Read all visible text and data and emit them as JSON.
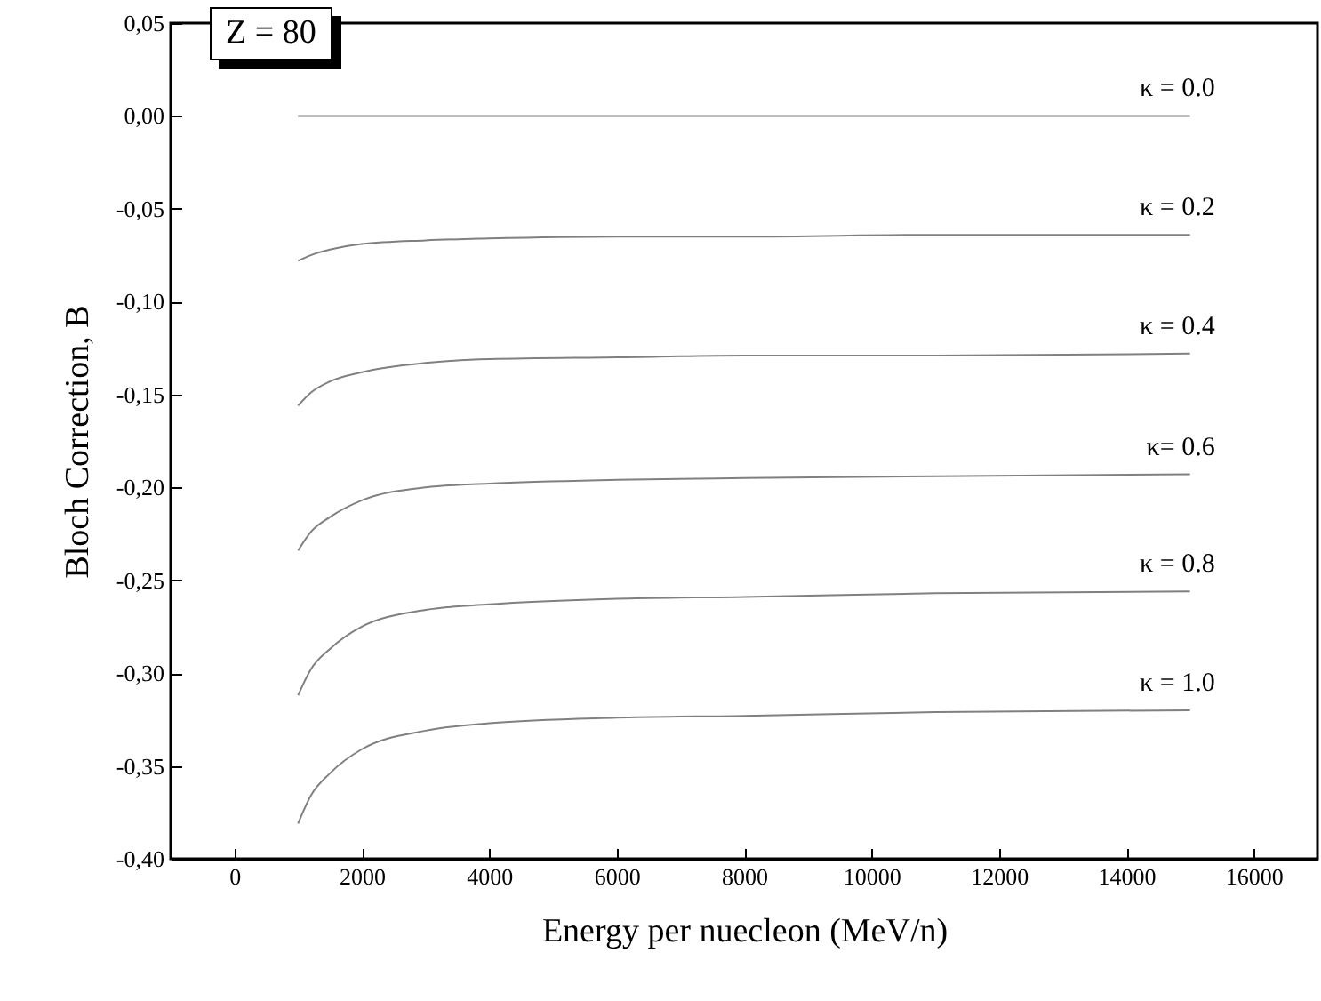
{
  "chart_data": {
    "type": "line",
    "xlabel": "Energy per nuecleon (MeV/n)",
    "ylabel": "Bloch Correction,  B",
    "annotations": [
      "Z = 80"
    ],
    "x": [
      1000,
      1200,
      1500,
      2000,
      3000,
      4000,
      6000,
      8000,
      11000,
      15000
    ],
    "series": [
      {
        "name": "κ = 0.0",
        "color": "#808080",
        "values": [
          0,
          0,
          0,
          0,
          0,
          0,
          0,
          0,
          0,
          0
        ]
      },
      {
        "name": "κ = 0.2",
        "color": "#808080",
        "values": [
          -0.078,
          -0.075,
          -0.072,
          -0.069,
          -0.067,
          -0.066,
          -0.065,
          -0.065,
          -0.064,
          -0.064
        ]
      },
      {
        "name": "κ = 0.4",
        "color": "#808080",
        "values": [
          -0.156,
          -0.149,
          -0.143,
          -0.138,
          -0.133,
          -0.131,
          -0.13,
          -0.129,
          -0.129,
          -0.128
        ]
      },
      {
        "name": "κ= 0.6",
        "color": "#808080",
        "values": [
          -0.234,
          -0.224,
          -0.216,
          -0.207,
          -0.2,
          -0.198,
          -0.196,
          -0.195,
          -0.194,
          -0.193
        ]
      },
      {
        "name": "κ = 0.8",
        "color": "#808080",
        "values": [
          -0.312,
          -0.298,
          -0.287,
          -0.275,
          -0.266,
          -0.263,
          -0.26,
          -0.259,
          -0.257,
          -0.256
        ]
      },
      {
        "name": "κ = 1.0",
        "color": "#808080",
        "values": [
          -0.381,
          -0.366,
          -0.354,
          -0.341,
          -0.331,
          -0.327,
          -0.324,
          -0.323,
          -0.321,
          -0.32
        ]
      }
    ],
    "xlim": [
      -1000,
      17000
    ],
    "xticks": [
      0,
      2000,
      4000,
      6000,
      8000,
      10000,
      12000,
      14000,
      16000
    ],
    "ylim": [
      -0.4,
      0.05
    ],
    "yticks": [
      {
        "value": 0.05,
        "label": "0,05"
      },
      {
        "value": 0,
        "label": "0,00"
      },
      {
        "value": -0.05,
        "label": "-0,05"
      },
      {
        "value": -0.1,
        "label": "-0,10"
      },
      {
        "value": -0.15,
        "label": "-0,15"
      },
      {
        "value": -0.2,
        "label": "-0,20"
      },
      {
        "value": -0.25,
        "label": "-0,25"
      },
      {
        "value": -0.3,
        "label": "-0,30"
      },
      {
        "value": -0.35,
        "label": "-0,35"
      },
      {
        "value": -0.4,
        "label": "-0,40"
      }
    ],
    "grid": false,
    "legend": false,
    "marker": "none",
    "line_style": "solid"
  }
}
